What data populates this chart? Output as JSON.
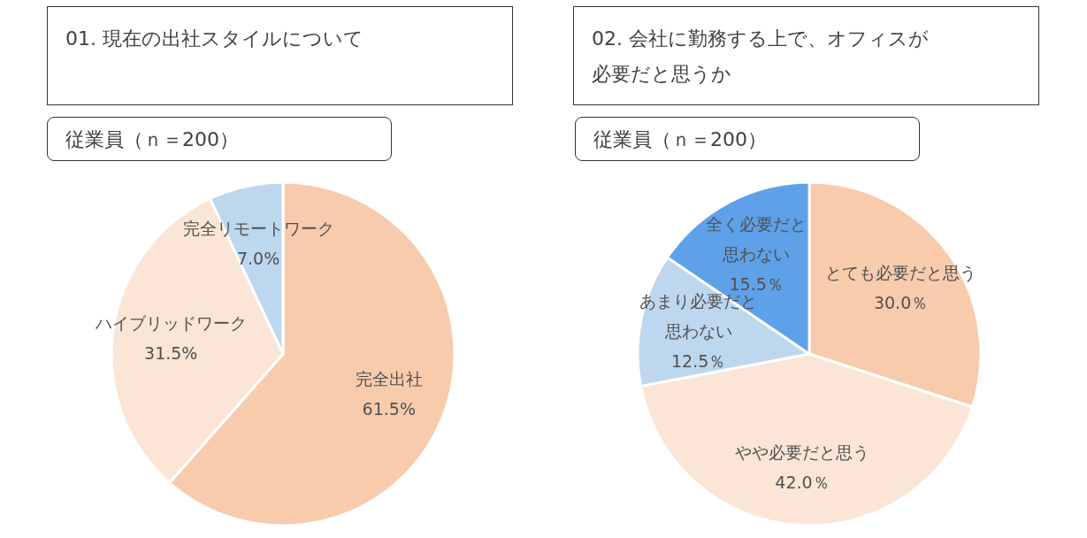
{
  "chart_data": [
    {
      "type": "pie",
      "title": "01. 現在の出社スタイルについて",
      "subtitle": "従業員（ｎ＝200）",
      "categories": [
        "完全出社",
        "ハイブリッドワーク",
        "完全リモートワーク"
      ],
      "values": [
        61.5,
        31.5,
        7.0
      ],
      "colors": [
        "#f8cbad",
        "#fbe5d6",
        "#bdd7ee"
      ],
      "value_labels": [
        "61.5%",
        "31.5%",
        "7.0%"
      ]
    },
    {
      "type": "pie",
      "title": "02. 会社に勤務する上で、オフィスが必要だと思うか",
      "subtitle": "従業員（ｎ＝200）",
      "categories": [
        "とても必要だと思う",
        "やや必要だと思う",
        "あまり必要だと思わない",
        "全く必要だと思わない"
      ],
      "values": [
        30.0,
        42.0,
        12.5,
        15.5
      ],
      "colors": [
        "#f8cbad",
        "#fbe5d6",
        "#bdd7ee",
        "#5ea1e9"
      ],
      "value_labels": [
        "30.0％",
        "42.0％",
        "12.5％",
        "15.5％"
      ]
    }
  ]
}
